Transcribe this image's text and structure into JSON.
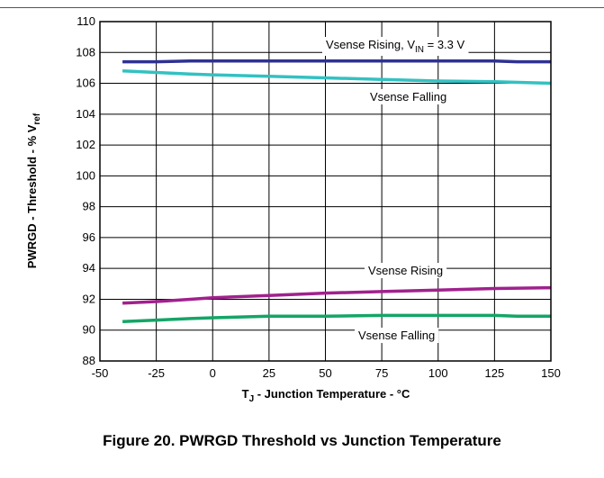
{
  "caption": "Figure 20. PWRGD Threshold vs Junction Temperature",
  "chart_data": {
    "type": "line",
    "xlabel": {
      "main": "T",
      "sub": "J",
      "rest": " - Junction Temperature - °C"
    },
    "ylabel": {
      "main": "PWRGD - Threshold - % V",
      "sub": "ref"
    },
    "xlim": [
      -50,
      150
    ],
    "ylim": [
      88,
      110
    ],
    "xticks": [
      -50,
      -25,
      0,
      25,
      50,
      75,
      100,
      125,
      150
    ],
    "yticks": [
      88,
      90,
      92,
      94,
      96,
      98,
      100,
      102,
      104,
      106,
      108,
      110
    ],
    "grid": true,
    "series": [
      {
        "name": "Vsense Rising, VIN = 3.3 V",
        "color": "#2e3192",
        "x": [
          -40,
          -25,
          -10,
          0,
          25,
          50,
          75,
          100,
          125,
          135,
          150
        ],
        "y": [
          107.4,
          107.4,
          107.45,
          107.45,
          107.45,
          107.45,
          107.45,
          107.45,
          107.45,
          107.4,
          107.4
        ]
      },
      {
        "name": "Vsense Falling",
        "color": "#33c1c2",
        "x": [
          -40,
          -25,
          -10,
          0,
          25,
          50,
          75,
          100,
          125,
          150
        ],
        "y": [
          106.8,
          106.7,
          106.6,
          106.55,
          106.45,
          106.35,
          106.25,
          106.15,
          106.1,
          106.0
        ]
      },
      {
        "name": "Vsense Rising",
        "color": "#a0218d",
        "x": [
          -40,
          -25,
          -10,
          0,
          25,
          50,
          75,
          100,
          125,
          150
        ],
        "y": [
          91.75,
          91.85,
          92.0,
          92.1,
          92.25,
          92.4,
          92.5,
          92.6,
          92.7,
          92.75
        ]
      },
      {
        "name": "Vsense Falling",
        "color": "#14a567",
        "x": [
          -40,
          -25,
          -10,
          0,
          25,
          50,
          75,
          100,
          125,
          135,
          150
        ],
        "y": [
          90.55,
          90.65,
          90.75,
          90.8,
          90.9,
          90.9,
          90.95,
          90.95,
          90.95,
          90.9,
          90.9
        ]
      }
    ],
    "annotations": [
      {
        "text": "Vsense Rising, V",
        "sub": "IN",
        "after": " = 3.3 V"
      },
      {
        "text": "Vsense Falling"
      },
      {
        "text": "Vsense Rising"
      },
      {
        "text": "Vsense Falling"
      }
    ]
  }
}
